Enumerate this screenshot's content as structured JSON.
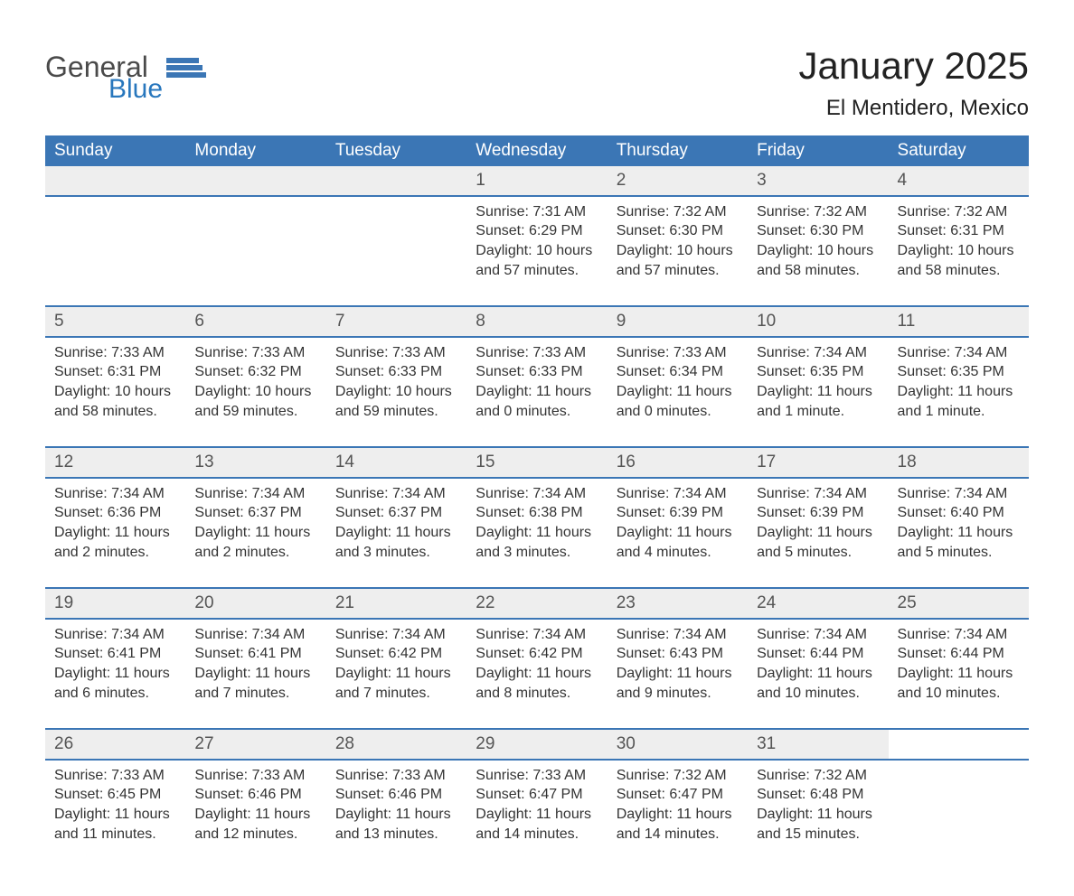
{
  "logo": {
    "general": "General",
    "blue": "Blue"
  },
  "title": "January 2025",
  "subtitle": "El Mentidero, Mexico",
  "colors": {
    "header_bg": "#3b76b5",
    "daynum_bg": "#eeeeee",
    "row_border": "#3b76b5",
    "logo_blue": "#2877bd",
    "text": "#333333"
  },
  "weekdays": [
    "Sunday",
    "Monday",
    "Tuesday",
    "Wednesday",
    "Thursday",
    "Friday",
    "Saturday"
  ],
  "weeks": [
    [
      null,
      null,
      null,
      {
        "n": "1",
        "sunrise": "Sunrise: 7:31 AM",
        "sunset": "Sunset: 6:29 PM",
        "daylight": "Daylight: 10 hours and 57 minutes."
      },
      {
        "n": "2",
        "sunrise": "Sunrise: 7:32 AM",
        "sunset": "Sunset: 6:30 PM",
        "daylight": "Daylight: 10 hours and 57 minutes."
      },
      {
        "n": "3",
        "sunrise": "Sunrise: 7:32 AM",
        "sunset": "Sunset: 6:30 PM",
        "daylight": "Daylight: 10 hours and 58 minutes."
      },
      {
        "n": "4",
        "sunrise": "Sunrise: 7:32 AM",
        "sunset": "Sunset: 6:31 PM",
        "daylight": "Daylight: 10 hours and 58 minutes."
      }
    ],
    [
      {
        "n": "5",
        "sunrise": "Sunrise: 7:33 AM",
        "sunset": "Sunset: 6:31 PM",
        "daylight": "Daylight: 10 hours and 58 minutes."
      },
      {
        "n": "6",
        "sunrise": "Sunrise: 7:33 AM",
        "sunset": "Sunset: 6:32 PM",
        "daylight": "Daylight: 10 hours and 59 minutes."
      },
      {
        "n": "7",
        "sunrise": "Sunrise: 7:33 AM",
        "sunset": "Sunset: 6:33 PM",
        "daylight": "Daylight: 10 hours and 59 minutes."
      },
      {
        "n": "8",
        "sunrise": "Sunrise: 7:33 AM",
        "sunset": "Sunset: 6:33 PM",
        "daylight": "Daylight: 11 hours and 0 minutes."
      },
      {
        "n": "9",
        "sunrise": "Sunrise: 7:33 AM",
        "sunset": "Sunset: 6:34 PM",
        "daylight": "Daylight: 11 hours and 0 minutes."
      },
      {
        "n": "10",
        "sunrise": "Sunrise: 7:34 AM",
        "sunset": "Sunset: 6:35 PM",
        "daylight": "Daylight: 11 hours and 1 minute."
      },
      {
        "n": "11",
        "sunrise": "Sunrise: 7:34 AM",
        "sunset": "Sunset: 6:35 PM",
        "daylight": "Daylight: 11 hours and 1 minute."
      }
    ],
    [
      {
        "n": "12",
        "sunrise": "Sunrise: 7:34 AM",
        "sunset": "Sunset: 6:36 PM",
        "daylight": "Daylight: 11 hours and 2 minutes."
      },
      {
        "n": "13",
        "sunrise": "Sunrise: 7:34 AM",
        "sunset": "Sunset: 6:37 PM",
        "daylight": "Daylight: 11 hours and 2 minutes."
      },
      {
        "n": "14",
        "sunrise": "Sunrise: 7:34 AM",
        "sunset": "Sunset: 6:37 PM",
        "daylight": "Daylight: 11 hours and 3 minutes."
      },
      {
        "n": "15",
        "sunrise": "Sunrise: 7:34 AM",
        "sunset": "Sunset: 6:38 PM",
        "daylight": "Daylight: 11 hours and 3 minutes."
      },
      {
        "n": "16",
        "sunrise": "Sunrise: 7:34 AM",
        "sunset": "Sunset: 6:39 PM",
        "daylight": "Daylight: 11 hours and 4 minutes."
      },
      {
        "n": "17",
        "sunrise": "Sunrise: 7:34 AM",
        "sunset": "Sunset: 6:39 PM",
        "daylight": "Daylight: 11 hours and 5 minutes."
      },
      {
        "n": "18",
        "sunrise": "Sunrise: 7:34 AM",
        "sunset": "Sunset: 6:40 PM",
        "daylight": "Daylight: 11 hours and 5 minutes."
      }
    ],
    [
      {
        "n": "19",
        "sunrise": "Sunrise: 7:34 AM",
        "sunset": "Sunset: 6:41 PM",
        "daylight": "Daylight: 11 hours and 6 minutes."
      },
      {
        "n": "20",
        "sunrise": "Sunrise: 7:34 AM",
        "sunset": "Sunset: 6:41 PM",
        "daylight": "Daylight: 11 hours and 7 minutes."
      },
      {
        "n": "21",
        "sunrise": "Sunrise: 7:34 AM",
        "sunset": "Sunset: 6:42 PM",
        "daylight": "Daylight: 11 hours and 7 minutes."
      },
      {
        "n": "22",
        "sunrise": "Sunrise: 7:34 AM",
        "sunset": "Sunset: 6:42 PM",
        "daylight": "Daylight: 11 hours and 8 minutes."
      },
      {
        "n": "23",
        "sunrise": "Sunrise: 7:34 AM",
        "sunset": "Sunset: 6:43 PM",
        "daylight": "Daylight: 11 hours and 9 minutes."
      },
      {
        "n": "24",
        "sunrise": "Sunrise: 7:34 AM",
        "sunset": "Sunset: 6:44 PM",
        "daylight": "Daylight: 11 hours and 10 minutes."
      },
      {
        "n": "25",
        "sunrise": "Sunrise: 7:34 AM",
        "sunset": "Sunset: 6:44 PM",
        "daylight": "Daylight: 11 hours and 10 minutes."
      }
    ],
    [
      {
        "n": "26",
        "sunrise": "Sunrise: 7:33 AM",
        "sunset": "Sunset: 6:45 PM",
        "daylight": "Daylight: 11 hours and 11 minutes."
      },
      {
        "n": "27",
        "sunrise": "Sunrise: 7:33 AM",
        "sunset": "Sunset: 6:46 PM",
        "daylight": "Daylight: 11 hours and 12 minutes."
      },
      {
        "n": "28",
        "sunrise": "Sunrise: 7:33 AM",
        "sunset": "Sunset: 6:46 PM",
        "daylight": "Daylight: 11 hours and 13 minutes."
      },
      {
        "n": "29",
        "sunrise": "Sunrise: 7:33 AM",
        "sunset": "Sunset: 6:47 PM",
        "daylight": "Daylight: 11 hours and 14 minutes."
      },
      {
        "n": "30",
        "sunrise": "Sunrise: 7:32 AM",
        "sunset": "Sunset: 6:47 PM",
        "daylight": "Daylight: 11 hours and 14 minutes."
      },
      {
        "n": "31",
        "sunrise": "Sunrise: 7:32 AM",
        "sunset": "Sunset: 6:48 PM",
        "daylight": "Daylight: 11 hours and 15 minutes."
      },
      null
    ]
  ]
}
